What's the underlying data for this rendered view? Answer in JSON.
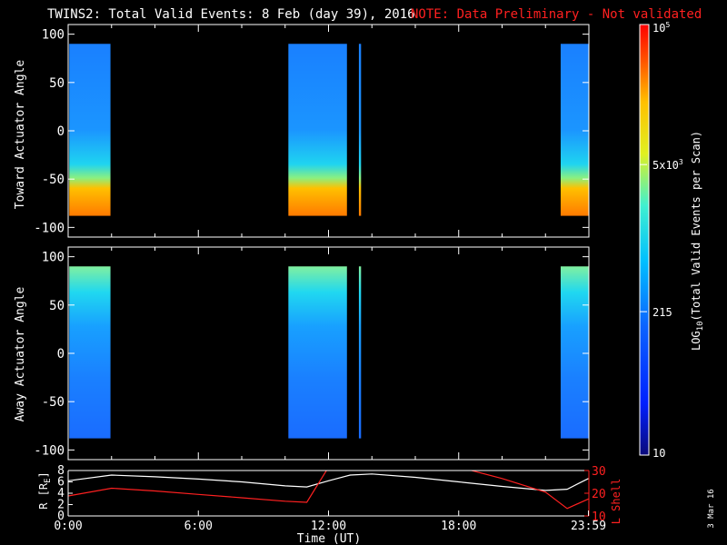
{
  "title": {
    "main": "TWINS2: Total Valid Events:  8 Feb (day  39), 2016",
    "note": "NOTE: Data Preliminary - Not validated"
  },
  "colors": {
    "background": "#000000",
    "axes": "#ffffff",
    "note": "#ff2020",
    "lshell": "#ff2020",
    "radius": "#ffffff"
  },
  "panels": {
    "toward": {
      "ylabel": "Toward Actuator Angle"
    },
    "away": {
      "ylabel": "Away Actuator Angle"
    }
  },
  "bottom": {
    "left_label": "R [R",
    "left_sub": "E",
    "left_close": "]",
    "right_label": "L Shell",
    "xlabel": "Time (UT)",
    "date_stamp": "3 Mar 16"
  },
  "colorbar": {
    "label_main": "LOG",
    "label_sub": "10",
    "label_rest": "(Total Valid Events per Scan)",
    "ticks": [
      "10",
      "215",
      "5x10",
      "10"
    ],
    "tick_exp": [
      "",
      "",
      "3",
      "5"
    ]
  },
  "chart_data": [
    {
      "type": "heatmap",
      "name": "toward",
      "ylabel": "Toward Actuator Angle",
      "xlim": [
        0,
        24
      ],
      "ylim": [
        -110,
        110
      ],
      "yticks": [
        100,
        50,
        0,
        -50,
        -100
      ],
      "xticks": [
        0,
        2,
        4,
        6,
        8,
        10,
        12,
        14,
        16,
        18,
        20,
        22,
        24
      ],
      "angle_range": [
        -88,
        90
      ],
      "data_intervals_hours": [
        [
          0.05,
          1.95
        ],
        [
          10.15,
          12.85
        ],
        [
          13.4,
          13.5
        ],
        [
          22.7,
          23.99
        ]
      ],
      "color_scale": "log",
      "zlim": [
        10,
        100000
      ]
    },
    {
      "type": "heatmap",
      "name": "away",
      "ylabel": "Away Actuator Angle",
      "xlim": [
        0,
        24
      ],
      "ylim": [
        -110,
        110
      ],
      "yticks": [
        100,
        50,
        0,
        -50,
        -100
      ],
      "xticks": [
        0,
        2,
        4,
        6,
        8,
        10,
        12,
        14,
        16,
        18,
        20,
        22,
        24
      ],
      "angle_range": [
        -88,
        90
      ],
      "data_intervals_hours": [
        [
          0.05,
          1.95
        ],
        [
          10.15,
          12.85
        ],
        [
          13.4,
          13.5
        ],
        [
          22.7,
          23.99
        ]
      ],
      "color_scale": "log",
      "zlim": [
        10,
        100000
      ]
    },
    {
      "type": "line",
      "name": "orbit",
      "xlabel": "Time (UT)",
      "xlim": [
        0,
        24
      ],
      "xtick_labels": [
        "0:00",
        "6:00",
        "12:00",
        "18:00",
        "23:59"
      ],
      "xtick_values": [
        0,
        6,
        12,
        18,
        23.98
      ],
      "y_left": {
        "ylim": [
          0,
          8
        ],
        "yticks": [
          0,
          2,
          4,
          6,
          8
        ]
      },
      "y_right": {
        "ylim": [
          10,
          30
        ],
        "yticks": [
          10,
          20,
          30
        ]
      },
      "series": [
        {
          "axis": "left",
          "x": [
            0,
            2,
            4,
            6,
            8,
            10,
            11,
            12,
            13,
            14,
            16,
            18,
            20,
            22,
            23,
            23.98
          ],
          "y": [
            6.2,
            7.2,
            6.9,
            6.5,
            6.0,
            5.3,
            5.1,
            6.2,
            7.2,
            7.4,
            6.8,
            6.0,
            5.2,
            4.5,
            4.7,
            6.6
          ]
        },
        {
          "axis": "right",
          "x": [
            0,
            2,
            4,
            6,
            8,
            10,
            11,
            12.0,
            18.0,
            20,
            22,
            23,
            23.98
          ],
          "y": [
            18.8,
            22.2,
            21.0,
            19.5,
            18.0,
            16.5,
            16.0,
            31.5,
            31.5,
            26.5,
            20.5,
            13.3,
            17.5
          ]
        }
      ]
    }
  ]
}
